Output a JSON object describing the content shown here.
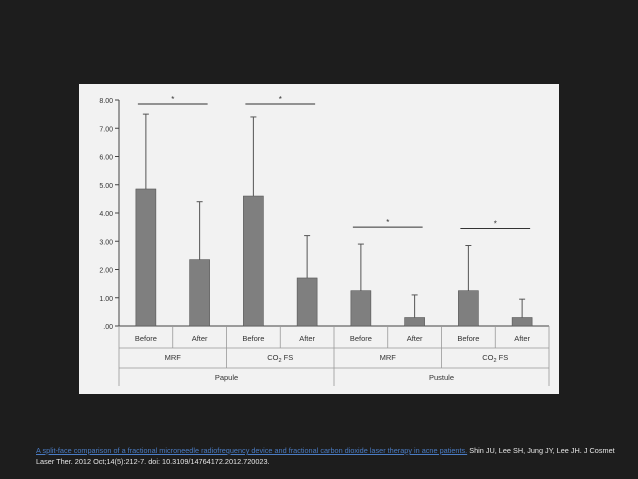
{
  "citation": {
    "link_text": "A split-face comparison of a fractional microneedle radiofrequency device and fractional carbon dioxide laser therapy in acne patients.",
    "reference": " Shin JU, Lee SH, Jung JY, Lee JH. J Cosmet Laser Ther. 2012 Oct;14(5):212-7. doi: 10.3109/14764172.2012.720023."
  },
  "chart_data": {
    "type": "bar",
    "title": "",
    "xlabel": "",
    "ylabel": "",
    "ylim": [
      0,
      8
    ],
    "yticks": [
      "8.00",
      "7.00",
      "6.00",
      "5.00",
      "4.00",
      "3.00",
      "2.00",
      "1.00",
      ".00"
    ],
    "categories": [
      "Before",
      "After",
      "Before",
      "After",
      "Before",
      "After",
      "Before",
      "After"
    ],
    "values": [
      4.85,
      2.35,
      4.6,
      1.7,
      1.25,
      0.3,
      1.25,
      0.3
    ],
    "error_upper": [
      7.5,
      4.4,
      7.4,
      3.2,
      2.9,
      1.1,
      2.85,
      0.95
    ],
    "treatment_groups": [
      "MRF",
      "CO",
      "MRF",
      "CO"
    ],
    "treatment_suffix": " FS",
    "treatment_subscript": "2",
    "lesion_groups": [
      "Papule",
      "Pustule"
    ],
    "significance": [
      "*",
      "*",
      "*",
      "*"
    ],
    "bar_color": "#7f7f7f",
    "grid": false
  }
}
